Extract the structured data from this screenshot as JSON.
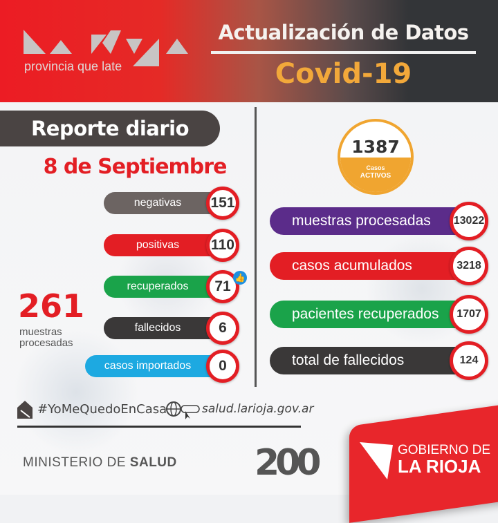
{
  "header": {
    "logo_text": "La Rioja",
    "tagline": "provincia que late",
    "title": "Actualización de Datos",
    "subtitle": "Covid-19"
  },
  "report": {
    "title": "Reporte diario",
    "date": "8 de Septiembre"
  },
  "daily": [
    {
      "label": "negativas",
      "value": "151",
      "color": "#6c6462"
    },
    {
      "label": "positivas",
      "value": "110",
      "color": "#e31e24"
    },
    {
      "label": "recuperados",
      "value": "71",
      "color": "#1aa34a"
    },
    {
      "label": "fallecidos",
      "value": "6",
      "color": "#3a3838"
    },
    {
      "label": "casos importados",
      "value": "0",
      "color": "#1da9e1"
    }
  ],
  "daily_samples": {
    "value": "261",
    "label": "muestras procesadas"
  },
  "active": {
    "value": "1387",
    "label1": "Casos",
    "label2": "ACTIVOS"
  },
  "totals": [
    {
      "label": "muestras procesadas",
      "value": "13022",
      "color": "#5b2c8a"
    },
    {
      "label": "casos acumulados",
      "value": "3218",
      "color": "#e31e24"
    },
    {
      "label": "pacientes recuperados",
      "value": "1707",
      "color": "#1aa34a"
    },
    {
      "label": "total de fallecidos",
      "value": "124",
      "color": "#3a3838"
    }
  ],
  "footer": {
    "hashtag": "#YoMeQuedoEnCasa",
    "website": "salud.larioja.gov.ar",
    "ministry_light": "MINISTERIO DE ",
    "ministry_bold": "SALUD",
    "anniversary": "200",
    "gov_line1": "GOBIERNO DE",
    "gov_line2": "LA RIOJA"
  }
}
